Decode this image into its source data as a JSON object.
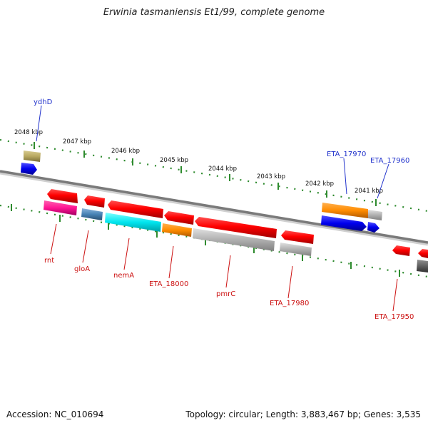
{
  "title": "Erwinia tasmaniensis Et1/99, complete genome",
  "accession": "Accession: NC_010694",
  "summary": "Topology: circular; Length: 3,883,467 bp; Genes: 3,535",
  "scale_labels": [
    "2048 kbp",
    "2047 kbp",
    "2046 kbp",
    "2045 kbp",
    "2044 kbp",
    "2043 kbp",
    "2042 kbp",
    "2041 kbp"
  ],
  "top_gene_labels": [
    "ydhD",
    "ETA_17970",
    "ETA_17960"
  ],
  "bottom_gene_labels": [
    "rnt",
    "gloA",
    "nemA",
    "ETA_18000",
    "pmrC",
    "ETA_17980",
    "ETA_17950"
  ],
  "colors": {
    "red": "#ff0000",
    "pink": "#ff1493",
    "cyan": "#00e5ee",
    "orange": "#ff8c00",
    "blue": "#0000ee",
    "steelblue": "#4682b4",
    "gray": "#b0b0b0",
    "olive": "#b8a860",
    "dotted": "#2e8b2e",
    "backbone": "#808080"
  }
}
